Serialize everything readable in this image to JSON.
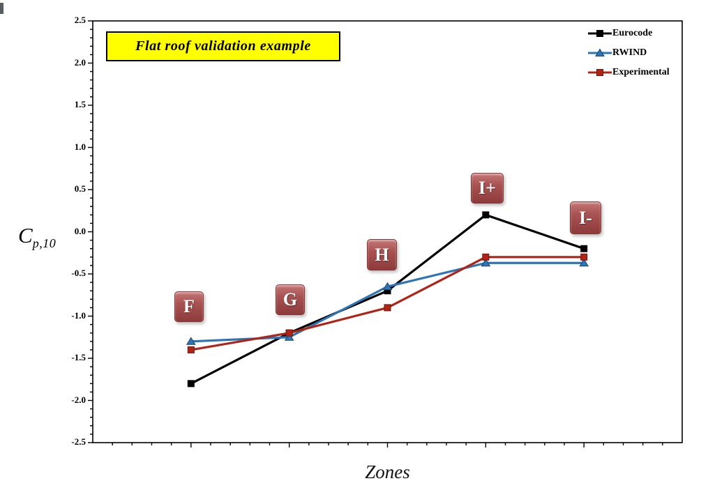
{
  "page": {
    "background": "#FFFFFF"
  },
  "title_box": {
    "text": "Flat roof validation example",
    "bg": "#FFFF00",
    "border": "#000000"
  },
  "axes": {
    "y_title_main": "C",
    "y_title_sub": "p,10",
    "x_title": "Zones",
    "y_tick_labels": [
      "2.5",
      "2.0",
      "1.5",
      "1.0",
      "0.5",
      "0.0",
      "-0.5",
      "-1.0",
      "-1.5",
      "-2.0",
      "-2.5"
    ]
  },
  "chart_data": {
    "type": "line",
    "title": "Flat roof validation example",
    "xlabel": "Zones",
    "ylabel": "C_p,10",
    "categories": [
      "F",
      "G",
      "H",
      "I+",
      "I-"
    ],
    "series": [
      {
        "name": "Eurocode",
        "color": "#000000",
        "marker": "square",
        "values": [
          -1.8,
          -1.2,
          -0.7,
          0.2,
          -0.2
        ]
      },
      {
        "name": "RWIND",
        "color": "#2E75B6",
        "marker": "triangle",
        "values": [
          -1.3,
          -1.25,
          -0.65,
          -0.37,
          -0.37
        ]
      },
      {
        "name": "Experimental",
        "color": "#B02418",
        "marker": "square",
        "values": [
          -1.4,
          -1.2,
          -0.9,
          -0.3,
          -0.3
        ]
      }
    ],
    "ylim": [
      -2.5,
      2.5
    ],
    "ytick_major": 0.5,
    "ytick_minor": 0.1,
    "grid": false,
    "legend_position": "top-right",
    "zone_label_box_color": "#A04848"
  }
}
